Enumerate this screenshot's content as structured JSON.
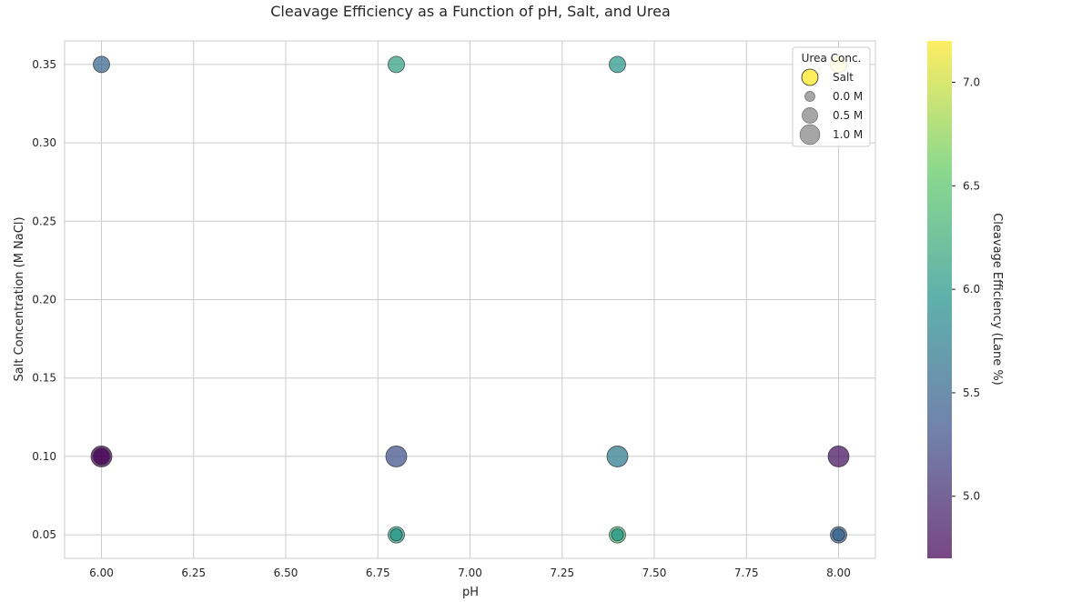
{
  "chart_data": {
    "type": "scatter",
    "title": "Cleavage Efficiency as a Function of pH, Salt, and Urea",
    "xlabel": "pH",
    "ylabel": "Salt Concentration (M NaCl)",
    "xlim": [
      5.9,
      8.1
    ],
    "ylim": [
      0.035,
      0.365
    ],
    "xticks": [
      "6.00",
      "6.25",
      "6.50",
      "6.75",
      "7.00",
      "7.25",
      "7.50",
      "7.75",
      "8.00"
    ],
    "xtick_values": [
      6.0,
      6.25,
      6.5,
      6.75,
      7.0,
      7.25,
      7.5,
      7.75,
      8.0
    ],
    "yticks": [
      "0.05",
      "0.10",
      "0.15",
      "0.20",
      "0.25",
      "0.30",
      "0.35"
    ],
    "ytick_values": [
      0.05,
      0.1,
      0.15,
      0.2,
      0.25,
      0.3,
      0.35
    ],
    "grid": true,
    "colorbar": {
      "label": "Cleavage Efficiency (Lane %)",
      "range": [
        4.7,
        7.2
      ],
      "ticks": [
        "5.0",
        "5.5",
        "6.0",
        "6.5",
        "7.0"
      ],
      "tick_values": [
        5.0,
        5.5,
        6.0,
        6.5,
        7.0
      ],
      "colormap": [
        "#440154",
        "#3b528b",
        "#21918c",
        "#5ec962",
        "#fde725"
      ]
    },
    "legend": {
      "title": "Urea Conc.",
      "placement": "top-right",
      "entries": [
        {
          "label": "Salt",
          "type": "color",
          "color": "#fde725"
        },
        {
          "label": "0.0 M",
          "type": "size",
          "urea": 0.0
        },
        {
          "label": "0.5 M",
          "type": "size",
          "urea": 0.5
        },
        {
          "label": "1.0 M",
          "type": "size",
          "urea": 1.0
        }
      ]
    },
    "points": [
      {
        "ph": 6.0,
        "salt": 0.35,
        "urea": 0.5,
        "efficiency": 5.5
      },
      {
        "ph": 6.8,
        "salt": 0.35,
        "urea": 0.5,
        "efficiency": 6.1
      },
      {
        "ph": 7.4,
        "salt": 0.35,
        "urea": 0.5,
        "efficiency": 6.0
      },
      {
        "ph": 8.0,
        "salt": 0.35,
        "urea": 0.5,
        "efficiency": 7.2
      },
      {
        "ph": 6.0,
        "salt": 0.1,
        "urea": 1.0,
        "efficiency": 4.6
      },
      {
        "ph": 6.0,
        "salt": 0.1,
        "urea": 0.5,
        "efficiency": 4.7
      },
      {
        "ph": 6.8,
        "salt": 0.1,
        "urea": 1.0,
        "efficiency": 5.3
      },
      {
        "ph": 7.4,
        "salt": 0.1,
        "urea": 1.0,
        "efficiency": 5.7
      },
      {
        "ph": 8.0,
        "salt": 0.1,
        "urea": 1.0,
        "efficiency": 4.8
      },
      {
        "ph": 6.8,
        "salt": 0.05,
        "urea": 0.5,
        "efficiency": 6.1
      },
      {
        "ph": 6.8,
        "salt": 0.05,
        "urea": 0.0,
        "efficiency": 6.0
      },
      {
        "ph": 7.4,
        "salt": 0.05,
        "urea": 0.5,
        "efficiency": 6.3
      },
      {
        "ph": 7.4,
        "salt": 0.05,
        "urea": 0.0,
        "efficiency": 6.0
      },
      {
        "ph": 8.0,
        "salt": 0.05,
        "urea": 0.5,
        "efficiency": 5.4
      },
      {
        "ph": 8.0,
        "salt": 0.05,
        "urea": 0.0,
        "efficiency": 5.5
      }
    ]
  }
}
